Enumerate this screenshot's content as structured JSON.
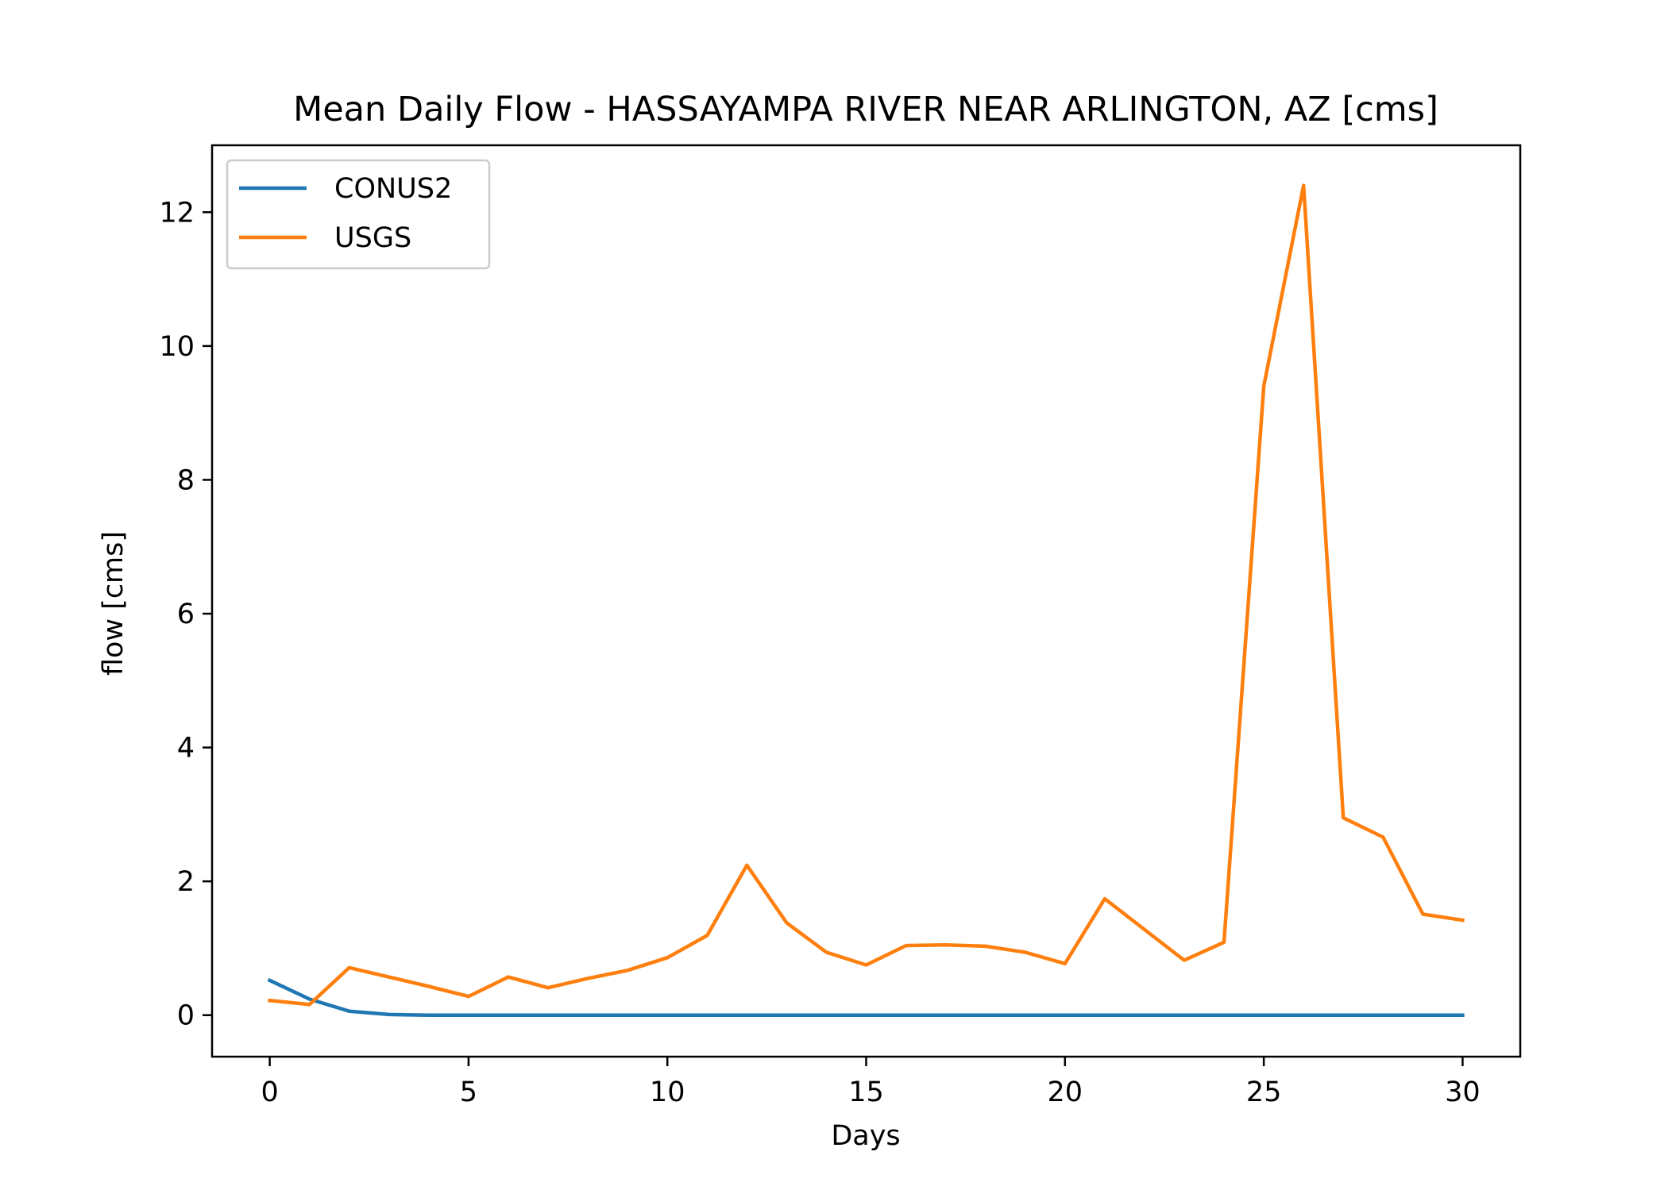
{
  "chart_data": {
    "type": "line",
    "title": "Mean Daily Flow - HASSAYAMPA RIVER NEAR ARLINGTON, AZ [cms]",
    "xlabel": "Days",
    "ylabel": "flow [cms]",
    "xlim": [
      -1.45,
      31.45
    ],
    "ylim": [
      -0.62,
      13.0
    ],
    "xticks": [
      0,
      5,
      10,
      15,
      20,
      25,
      30
    ],
    "yticks": [
      0,
      2,
      4,
      6,
      8,
      10,
      12
    ],
    "grid": false,
    "legend_position": "upper-left",
    "series": [
      {
        "name": "CONUS2",
        "color": "#1f77b4",
        "x": [
          0,
          1,
          2,
          3,
          4,
          5,
          6,
          7,
          8,
          9,
          10,
          11,
          12,
          13,
          14,
          15,
          16,
          17,
          18,
          19,
          20,
          21,
          22,
          23,
          24,
          25,
          26,
          27,
          28,
          29,
          30
        ],
        "y": [
          0.52,
          0.24,
          0.06,
          0.01,
          0,
          0,
          0,
          0,
          0,
          0,
          0,
          0,
          0,
          0,
          0,
          0,
          0,
          0,
          0,
          0,
          0,
          0,
          0,
          0,
          0,
          0,
          0,
          0,
          0,
          0,
          0
        ]
      },
      {
        "name": "USGS",
        "color": "#ff7f0e",
        "x": [
          0,
          1,
          2,
          3,
          4,
          5,
          6,
          7,
          8,
          9,
          10,
          11,
          12,
          13,
          14,
          15,
          16,
          17,
          18,
          19,
          20,
          21,
          22,
          23,
          24,
          25,
          26,
          27,
          28,
          29,
          30
        ],
        "y": [
          0.22,
          0.16,
          0.71,
          0.57,
          0.43,
          0.28,
          0.57,
          0.41,
          0.55,
          0.67,
          0.86,
          1.19,
          2.24,
          1.38,
          0.94,
          0.75,
          1.04,
          1.05,
          1.03,
          0.94,
          0.77,
          1.74,
          1.28,
          0.82,
          1.09,
          9.4,
          12.4,
          2.95,
          2.66,
          1.51,
          1.42
        ]
      }
    ]
  }
}
